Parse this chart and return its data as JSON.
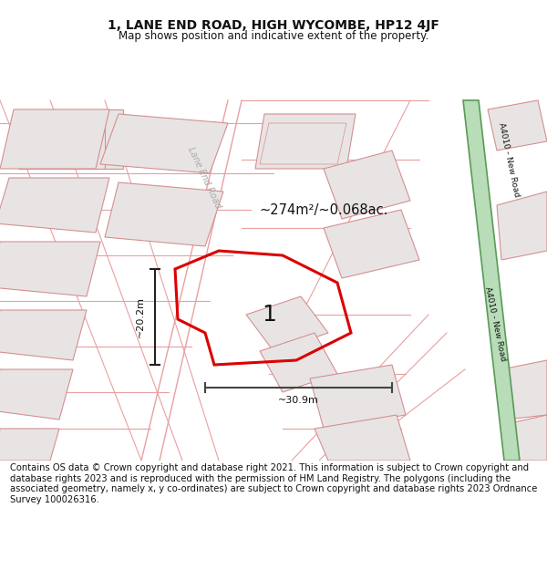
{
  "title": "1, LANE END ROAD, HIGH WYCOMBE, HP12 4JF",
  "subtitle": "Map shows position and indicative extent of the property.",
  "footer": "Contains OS data © Crown copyright and database right 2021. This information is subject to Crown copyright and database rights 2023 and is reproduced with the permission of HM Land Registry. The polygons (including the associated geometry, namely x, y co-ordinates) are subject to Crown copyright and database rights 2023 Ordnance Survey 100026316.",
  "title_fontsize": 10,
  "subtitle_fontsize": 8.5,
  "footer_fontsize": 7.2,
  "area_label": "~274m²/~0.068ac.",
  "dim_h": "~20.2m",
  "dim_w": "~30.9m",
  "number_label": "1",
  "road_label_a4010": "A4010 - New Road",
  "road_label_lane": "Lane End Road",
  "red_polygon_color": "#dd0000",
  "green_road_fill": "#b8ddb8",
  "green_road_edge": "#5a9a5a",
  "bldg_fill": "#e8e4e4",
  "bldg_edge": "#d49090",
  "road_line_color": "#e8a0a0",
  "map_bg": "#f8f4f4"
}
